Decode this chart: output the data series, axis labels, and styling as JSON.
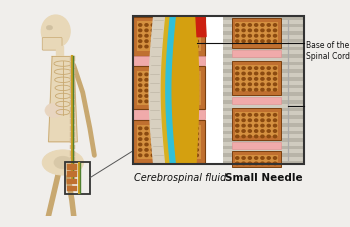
{
  "bg_color": "#f0eeeb",
  "text_color": "#111111",
  "label_csf": "Cerebrospinal fluid",
  "label_needle": "Small Needle",
  "label_spinal": "Base of the\nSpinal Cord",
  "vert_color": "#c07030",
  "vert_inner": "#d49040",
  "vert_dot": "#8b4a10",
  "disc_color": "#f0aaaa",
  "cord_yellow": "#d4a010",
  "cord_blue": "#30c0d8",
  "cord_red": "#cc2010",
  "cord_outer_yellow": "#c89010",
  "gray_tissue": "#c0b8a8",
  "gray_stripe": "#a8a090",
  "ann_color": "#111111",
  "detail_border": "#333333",
  "skeleton_color": "#e8d8b8",
  "skeleton_edge": "#c8a870",
  "spine_yellow": "#c8a020",
  "spine_green": "#508030"
}
